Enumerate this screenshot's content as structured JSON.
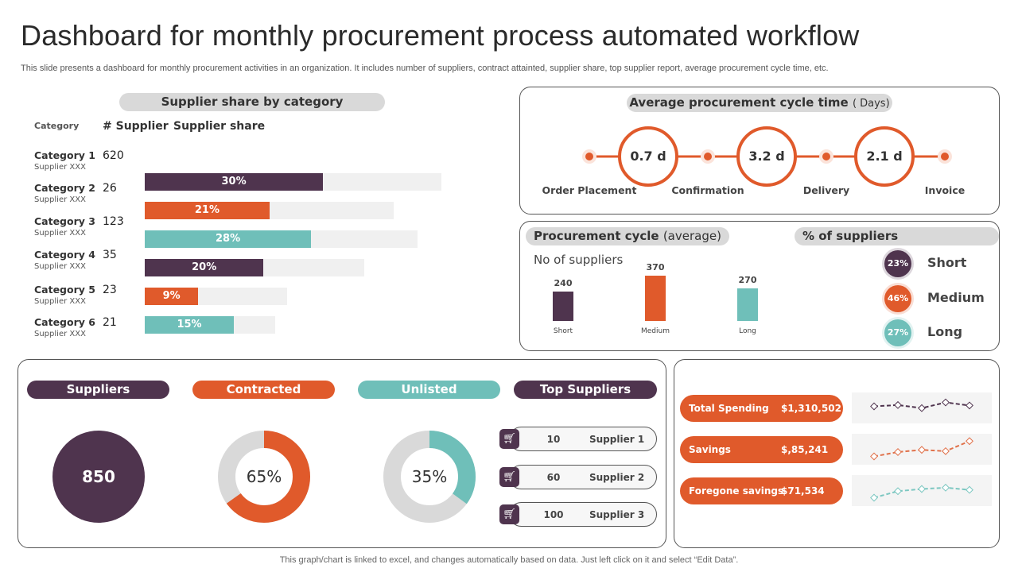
{
  "title": "Dashboard for monthly procurement process automated workflow",
  "subtitle": "This slide presents a dashboard for monthly procurement activities in an organization. It includes number of suppliers, contract attainted, supplier share, top supplier report, average procurement cycle time, etc.",
  "colors": {
    "purple": "#4f344e",
    "orange": "#e05a2b",
    "teal": "#6fbfb9",
    "gray": "#d9d9d9"
  },
  "share": {
    "title": "Supplier share by category",
    "col_category": "Category",
    "col_supplier": "# Supplier",
    "col_share": "Supplier share",
    "rows": [
      {
        "category": "Category 1",
        "sub": "Supplier XXX",
        "suppliers": "620",
        "share_label": "30%"
      },
      {
        "category": "Category 2",
        "sub": "Supplier XXX",
        "suppliers": "26",
        "share_label": "21%"
      },
      {
        "category": "Category 3",
        "sub": "Supplier XXX",
        "suppliers": "123",
        "share_label": "28%"
      },
      {
        "category": "Category 4",
        "sub": "Supplier XXX",
        "suppliers": "35",
        "share_label": "20%"
      },
      {
        "category": "Category 5",
        "sub": "Supplier XXX",
        "suppliers": "23",
        "share_label": "9%"
      },
      {
        "category": "Category 6",
        "sub": "Supplier XXX",
        "suppliers": "21",
        "share_label": "15%"
      }
    ]
  },
  "cycle": {
    "title": "Average procurement cycle time",
    "unit": "( Days)",
    "steps": [
      "Order Placement",
      "Confirmation",
      "Delivery",
      "Invoice"
    ],
    "times": [
      "0.7  d",
      "3.2  d",
      "2.1 d"
    ]
  },
  "proc": {
    "title": "Procurement cycle",
    "title_sub": "(average)",
    "ylabel": "No of suppliers"
  },
  "pct": {
    "title": "% of  suppliers",
    "items": [
      {
        "pct": "23%",
        "label": "Short"
      },
      {
        "pct": "46%",
        "label": "Medium"
      },
      {
        "pct": "27%",
        "label": "Long"
      }
    ]
  },
  "kpi": {
    "suppliers_label": "Suppliers",
    "suppliers_value": "850",
    "contracted_label": "Contracted",
    "contracted_value": "65%",
    "unlisted_label": "Unlisted",
    "unlisted_value": "35%",
    "top_label": "Top Suppliers",
    "top": [
      {
        "count": "10",
        "name": "Supplier 1"
      },
      {
        "count": "60",
        "name": "Supplier 2"
      },
      {
        "count": "100",
        "name": "Supplier 3"
      }
    ]
  },
  "spend": [
    {
      "label": "Total Spending",
      "value": "$1,310,502"
    },
    {
      "label": "Savings",
      "value": "$,85,241"
    },
    {
      "label": "Foregone savings",
      "value": "$71,534"
    }
  ],
  "chart_data": [
    {
      "type": "bar",
      "orientation": "horizontal",
      "categories": [
        "Category 1",
        "Category 2",
        "Category 3",
        "Category 4",
        "Category 5",
        "Category 6"
      ],
      "values": [
        30,
        21,
        28,
        20,
        9,
        15
      ],
      "unit": "%"
    },
    {
      "type": "bar",
      "categories": [
        "Short",
        "Medium",
        "Long"
      ],
      "values": [
        240,
        370,
        270
      ],
      "ylabel": "No of suppliers"
    },
    {
      "type": "pie",
      "donut": true,
      "values": [
        65,
        35
      ],
      "label": "65%"
    },
    {
      "type": "pie",
      "donut": true,
      "values": [
        35,
        65
      ],
      "label": "35%"
    },
    {
      "type": "line",
      "series": [
        {
          "values": [
            3.0,
            3.3,
            2.6,
            3.9,
            3.2
          ]
        },
        {
          "values": [
            1.0,
            2.0,
            2.5,
            2.2,
            4.5
          ]
        },
        {
          "values": [
            1.0,
            2.5,
            3.0,
            3.3,
            2.8
          ]
        }
      ]
    }
  ],
  "footer": "This graph/chart is linked to excel,  and changes automatically based on data. Just left click on it and select “Edit Data”."
}
